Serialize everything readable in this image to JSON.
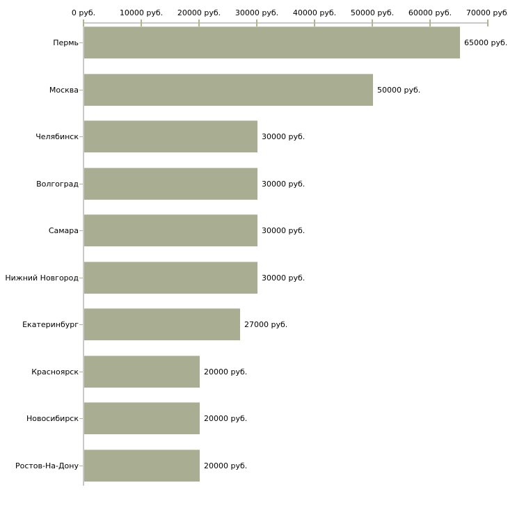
{
  "chart": {
    "background_color": "#ffffff",
    "bar_color": "#a9ad92",
    "bar_highlight_color": "#c9cbb9",
    "axis_line_color": "#c9c9c9",
    "tick_color": "#b3b48c",
    "text_color": "#000000"
  },
  "chart_data": {
    "type": "bar",
    "orientation": "horizontal",
    "title": "",
    "xlabel": "",
    "ylabel": "",
    "grid": false,
    "legend": "none",
    "xlim": [
      0,
      70000
    ],
    "x_ticks": [
      0,
      10000,
      20000,
      30000,
      40000,
      50000,
      60000,
      70000
    ],
    "x_tick_labels": [
      "0 руб.",
      "10000 руб.",
      "20000 руб.",
      "30000 руб.",
      "40000 руб.",
      "50000 руб.",
      "60000 руб.",
      "70000 руб."
    ],
    "categories": [
      "Пермь",
      "Москва",
      "Челябинск",
      "Волгоград",
      "Самара",
      "Нижний Новгород",
      "Екатеринбург",
      "Красноярск",
      "Новосибирск",
      "Ростов-На-Дону"
    ],
    "values": [
      65000,
      50000,
      30000,
      30000,
      30000,
      30000,
      27000,
      20000,
      20000,
      20000
    ],
    "value_labels": [
      "65000 руб.",
      "50000 руб.",
      "30000 руб.",
      "30000 руб.",
      "30000 руб.",
      "30000 руб.",
      "27000 руб.",
      "20000 руб.",
      "20000 руб.",
      "20000 руб."
    ]
  }
}
